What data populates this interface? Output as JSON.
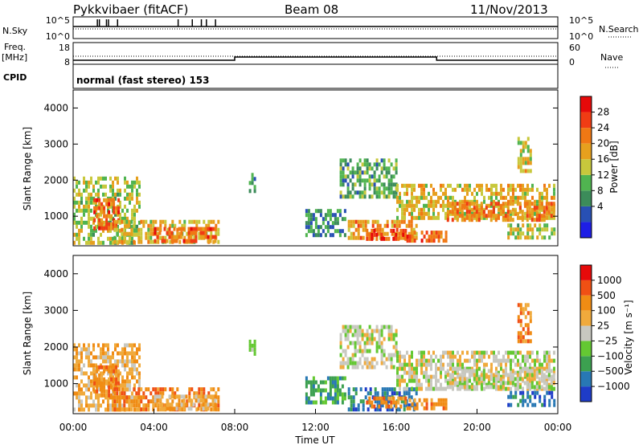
{
  "header": {
    "station": "Pykkvibaer (fitACF)",
    "beam": "Beam 08",
    "date": "11/Nov/2013"
  },
  "panels": {
    "nsky": {
      "left_label": "N.Sky",
      "right_label": "N.Search",
      "left_ticks": [
        "10^5",
        "10^0"
      ],
      "right_ticks": [
        "10^5",
        "10^0"
      ],
      "noise_spikes_hours": [
        1.2,
        1.3,
        1.65,
        1.75,
        2.2,
        5.2,
        5.9,
        6.35,
        6.6,
        7.05
      ]
    },
    "freq": {
      "left_label_line1": "Freq.",
      "left_label_line2": "[MHz]",
      "right_label": "Nave",
      "left_ticks": [
        "18",
        "8"
      ],
      "right_ticks": [
        "60",
        "0"
      ],
      "nave_step_hours": [
        8.0,
        18.0
      ]
    },
    "cpid": {
      "label": "CPID",
      "text": "normal (fast stereo) 153"
    }
  },
  "colors": {
    "power_bar": [
      "#1e1ee6",
      "#2850b4",
      "#3c8c5a",
      "#50b450",
      "#c8c83c",
      "#e6a01e",
      "#f07814",
      "#f03c14",
      "#e60a0a"
    ],
    "velocity_bar": [
      "#1e3cc8",
      "#2878b4",
      "#3ca050",
      "#64c832",
      "#c8c8c0",
      "#f0aa3c",
      "#f08c14",
      "#f05014",
      "#e60a0a"
    ]
  },
  "chart_data": [
    {
      "type": "heatmap",
      "name": "power",
      "ylabel": "Slant Range [km]",
      "ylim": [
        180,
        4500
      ],
      "yticks": [
        1000,
        2000,
        3000,
        4000
      ],
      "xlim": [
        0,
        24
      ],
      "xticks": [
        "00:00",
        "04:00",
        "08:00",
        "12:00",
        "16:00",
        "20:00",
        "00:00"
      ],
      "colorbar_label": "Power [dB]",
      "colorbar_ticks": [
        "28",
        "24",
        "20",
        "16",
        "12",
        "8",
        "4"
      ],
      "colorbar_range": [
        0,
        30
      ],
      "regions": [
        {
          "t": [
            0.0,
            3.3
          ],
          "r": [
            300,
            2100
          ],
          "level": 14
        },
        {
          "t": [
            1.0,
            2.3
          ],
          "r": [
            700,
            1500
          ],
          "level": 24
        },
        {
          "t": [
            2.0,
            7.2
          ],
          "r": [
            300,
            900
          ],
          "level": 17
        },
        {
          "t": [
            4.0,
            7.0
          ],
          "r": [
            300,
            700
          ],
          "level": 24
        },
        {
          "t": [
            8.7,
            9.0
          ],
          "r": [
            1700,
            2200
          ],
          "level": 8
        },
        {
          "t": [
            11.5,
            13.5
          ],
          "r": [
            450,
            1200
          ],
          "level": 8
        },
        {
          "t": [
            13.2,
            16.0
          ],
          "r": [
            1500,
            2600
          ],
          "level": 10
        },
        {
          "t": [
            13.6,
            17.0
          ],
          "r": [
            350,
            900
          ],
          "level": 20
        },
        {
          "t": [
            14.5,
            16.5
          ],
          "r": [
            350,
            650
          ],
          "level": 26
        },
        {
          "t": [
            16.5,
            18.5
          ],
          "r": [
            350,
            600
          ],
          "level": 24
        },
        {
          "t": [
            16.0,
            23.8
          ],
          "r": [
            900,
            1900
          ],
          "level": 17
        },
        {
          "t": [
            18.5,
            23.8
          ],
          "r": [
            900,
            1400
          ],
          "level": 22
        },
        {
          "t": [
            21.5,
            23.8
          ],
          "r": [
            450,
            800
          ],
          "level": 14
        },
        {
          "t": [
            22.0,
            22.6
          ],
          "r": [
            2200,
            3200
          ],
          "level": 16
        }
      ]
    },
    {
      "type": "heatmap",
      "name": "velocity",
      "ylabel": "Slant Range [km]",
      "xlabel": "Time UT",
      "ylim": [
        180,
        4500
      ],
      "yticks": [
        1000,
        2000,
        3000,
        4000
      ],
      "xlim": [
        0,
        24
      ],
      "xticks": [
        "00:00",
        "04:00",
        "08:00",
        "12:00",
        "16:00",
        "20:00",
        "00:00"
      ],
      "colorbar_label": "Velocity [m s⁻¹]",
      "colorbar_ticks": [
        "1000",
        "500",
        "100",
        "25",
        "−25",
        "−100",
        "−500",
        "−1000"
      ],
      "regions": [
        {
          "t": [
            0.0,
            3.3
          ],
          "r": [
            300,
            2100
          ],
          "level": 5
        },
        {
          "t": [
            1.0,
            2.3
          ],
          "r": [
            700,
            1500
          ],
          "level": 6
        },
        {
          "t": [
            2.0,
            7.2
          ],
          "r": [
            300,
            900
          ],
          "level": 6
        },
        {
          "t": [
            4.0,
            7.0
          ],
          "r": [
            300,
            700
          ],
          "level": 5
        },
        {
          "t": [
            8.7,
            9.0
          ],
          "r": [
            1700,
            2200
          ],
          "level": 3
        },
        {
          "t": [
            11.5,
            13.5
          ],
          "r": [
            450,
            1200
          ],
          "level": 2
        },
        {
          "t": [
            13.2,
            16.0
          ],
          "r": [
            1500,
            2600
          ],
          "level": 4
        },
        {
          "t": [
            13.6,
            17.0
          ],
          "r": [
            350,
            900
          ],
          "level": 1
        },
        {
          "t": [
            14.5,
            16.5
          ],
          "r": [
            350,
            650
          ],
          "level": 6
        },
        {
          "t": [
            16.5,
            18.5
          ],
          "r": [
            350,
            600
          ],
          "level": 6
        },
        {
          "t": [
            16.0,
            23.8
          ],
          "r": [
            900,
            1900
          ],
          "level": 4
        },
        {
          "t": [
            18.5,
            23.8
          ],
          "r": [
            900,
            1400
          ],
          "level": 4
        },
        {
          "t": [
            21.5,
            23.8
          ],
          "r": [
            450,
            800
          ],
          "level": 1
        },
        {
          "t": [
            22.0,
            22.6
          ],
          "r": [
            2200,
            3200
          ],
          "level": 6
        }
      ]
    }
  ]
}
